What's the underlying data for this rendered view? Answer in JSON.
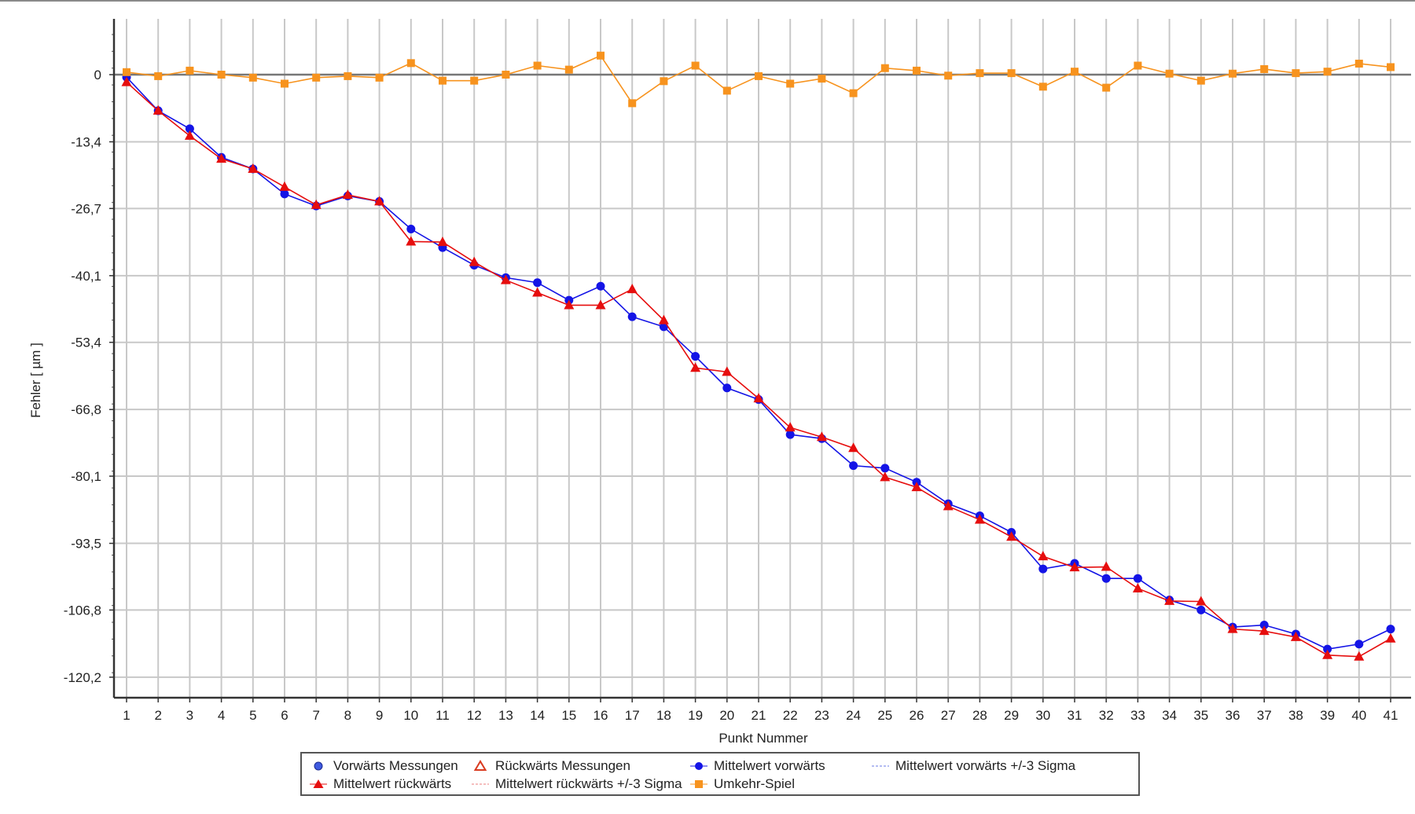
{
  "chart_data": {
    "type": "line",
    "xlabel": "Punkt Nummer",
    "ylabel": "Fehler [ µm ]",
    "x": [
      1,
      2,
      3,
      4,
      5,
      6,
      7,
      8,
      9,
      10,
      11,
      12,
      13,
      14,
      15,
      16,
      17,
      18,
      19,
      20,
      21,
      22,
      23,
      24,
      25,
      26,
      27,
      28,
      29,
      30,
      31,
      32,
      33,
      34,
      35,
      36,
      37,
      38,
      39,
      40,
      41
    ],
    "xlim": [
      1,
      41
    ],
    "ylim": [
      -124,
      11
    ],
    "yticks": [
      0,
      -13.4,
      -26.7,
      -40.1,
      -53.4,
      -66.8,
      -80.1,
      -93.5,
      -106.8,
      -120.2
    ],
    "ytick_labels": [
      "0",
      "-13,4",
      "-26,7",
      "-40,1",
      "-53,4",
      "-66,8",
      "-80,1",
      "-93,5",
      "-106,8",
      "-120,2"
    ],
    "grid": true,
    "legend_position": "bottom",
    "series": [
      {
        "name": "Mittelwert vorwärts",
        "color": "#1414e6",
        "marker": "circle",
        "values": [
          -0.5,
          -7.2,
          -10.8,
          -16.5,
          -18.8,
          -23.8,
          -26.2,
          -24.2,
          -25.3,
          -30.8,
          -34.5,
          -38,
          -40.5,
          -41.5,
          -45,
          -42.2,
          -48.3,
          -50.3,
          -56.2,
          -62.5,
          -64.8,
          -71.8,
          -72.6,
          -78,
          -78.5,
          -81.3,
          -85.6,
          -88,
          -91.3,
          -98.6,
          -97.5,
          -100.5,
          -100.5,
          -104.8,
          -106.8,
          -110.2,
          -109.8,
          -111.6,
          -114.6,
          -113.6,
          -110.6
        ]
      },
      {
        "name": "Mittelwert rückwärts",
        "color": "#e60e0e",
        "marker": "triangle",
        "values": [
          -1.5,
          -7.2,
          -12.2,
          -16.8,
          -18.8,
          -22.4,
          -26,
          -24,
          -25.3,
          -33.3,
          -33.4,
          -37.4,
          -41,
          -43.5,
          -46,
          -46,
          -42.8,
          -49,
          -58.5,
          -59.3,
          -64.6,
          -70.4,
          -72.3,
          -74.5,
          -80.3,
          -82.3,
          -86.1,
          -88.8,
          -92.2,
          -96.1,
          -98.3,
          -98.2,
          -102.5,
          -105,
          -105.1,
          -110.6,
          -111,
          -112.2,
          -115.8,
          -116.1,
          -112.5
        ]
      },
      {
        "name": "Umkehr-Spiel",
        "color": "#f7931e",
        "marker": "square",
        "values": [
          0.5,
          -0.3,
          0.8,
          0,
          -0.6,
          -1.8,
          -0.6,
          -0.3,
          -0.6,
          2.3,
          -1.2,
          -1.2,
          0,
          1.8,
          1,
          3.8,
          -5.7,
          -1.3,
          1.8,
          -3.2,
          -0.3,
          -1.8,
          -0.8,
          -3.7,
          1.3,
          0.8,
          -0.2,
          0.3,
          0.3,
          -2.4,
          0.6,
          -2.6,
          1.8,
          0.2,
          -1.2,
          0.2,
          1.1,
          0.3,
          0.6,
          2.2,
          1.5
        ]
      }
    ],
    "legend": [
      {
        "label": "Vorwärts Messungen",
        "symbol": "circle-open",
        "color": "#2a3fd0"
      },
      {
        "label": "Rückwärts Messungen",
        "symbol": "triangle-open",
        "color": "#d93a1f"
      },
      {
        "label": "Mittelwert vorwärts",
        "symbol": "circle-line",
        "color": "#1414e6"
      },
      {
        "label": "Mittelwert vorwärts +/-3 Sigma",
        "symbol": "dashed",
        "color": "#9aa6ee"
      },
      {
        "label": "Mittelwert rückwärts",
        "symbol": "triangle-line",
        "color": "#e60e0e"
      },
      {
        "label": "Mittelwert rückwärts +/-3 Sigma",
        "symbol": "dashed",
        "color": "#f2a8a8"
      },
      {
        "label": "Umkehr-Spiel",
        "symbol": "square-line",
        "color": "#f7931e"
      }
    ]
  }
}
